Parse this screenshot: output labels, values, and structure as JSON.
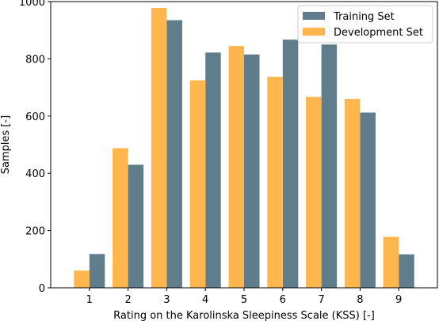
{
  "chart_data": {
    "type": "bar",
    "xlabel": "Rating on the Karolinska Sleepiness Scale (KSS) [-]",
    "ylabel": "Samples [-]",
    "categories": [
      "1",
      "2",
      "3",
      "4",
      "5",
      "6",
      "7",
      "8",
      "9"
    ],
    "ylim": [
      0,
      1000
    ],
    "yticks": [
      0,
      200,
      400,
      600,
      800,
      1000
    ],
    "grid": false,
    "legend_position": "top-right",
    "series": [
      {
        "name": "Training Set",
        "color": "#607d8b",
        "values": [
          118,
          430,
          935,
          822,
          815,
          867,
          850,
          612,
          117
        ]
      },
      {
        "name": "Development Set",
        "color": "#ffb74d",
        "values": [
          60,
          488,
          978,
          725,
          845,
          737,
          667,
          660,
          178
        ]
      }
    ]
  }
}
